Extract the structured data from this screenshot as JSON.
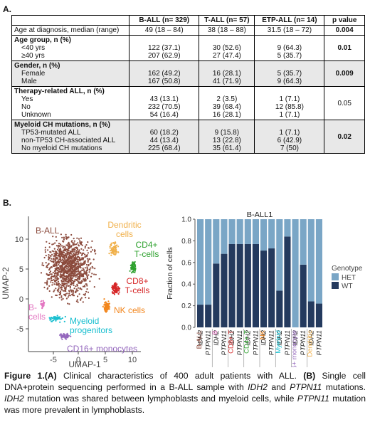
{
  "panel_labels": {
    "a": "A.",
    "b": "B."
  },
  "table": {
    "headers": [
      "",
      "B-ALL (n= 329)",
      "T-ALL (n= 57)",
      "ETP-ALL (n= 14)",
      "p value"
    ],
    "age_row": {
      "label": "Age at diagnosis, median (range)",
      "ball": "49 (18 – 84)",
      "tall": "38 (18 – 88)",
      "etp": "31.5 (18 – 72)",
      "p": "0.004"
    },
    "groups": [
      {
        "title": "Age group, n (%)",
        "p": "0.01",
        "shaded": false,
        "rows": [
          {
            "label": "<40 yrs",
            "ball": "122 (37.1)",
            "tall": "30 (52.6)",
            "etp": "9 (64.3)"
          },
          {
            "label": "≥40 yrs",
            "ball": "207 (62.9)",
            "tall": "27 (47.4)",
            "etp": "5 (35.7)"
          }
        ]
      },
      {
        "title": "Gender, n (%)",
        "p": "0.009",
        "shaded": true,
        "rows": [
          {
            "label": "Female",
            "ball": "162 (49.2)",
            "tall": "16 (28.1)",
            "etp": "5 (35.7)"
          },
          {
            "label": "Male",
            "ball": "167 (50.8)",
            "tall": "41 (71.9)",
            "etp": "9 (64.3)"
          }
        ]
      },
      {
        "title": "Therapy-related ALL, n (%)",
        "p": "0.05",
        "shaded": false,
        "rows": [
          {
            "label": "Yes",
            "ball": "43 (13.1)",
            "tall": "2 (3.5)",
            "etp": "1 (7.1)"
          },
          {
            "label": "No",
            "ball": "232 (70.5)",
            "tall": "39 (68.4)",
            "etp": "12 (85.8)"
          },
          {
            "label": "Unknown",
            "ball": "54 (16.4)",
            "tall": "16 (28.1)",
            "etp": "1 (7.1)"
          }
        ]
      },
      {
        "title": "Myeloid CH mutations, n (%)",
        "p": "0.02",
        "shaded": true,
        "rows": [
          {
            "label": "TP53-mutated ALL",
            "ball": "60 (18.2)",
            "tall": "9 (15.8)",
            "etp": "1 (7.1)"
          },
          {
            "label": "non-TP53 CH-associated ALL",
            "ball": "44 (13.4)",
            "tall": "13 (22.8)",
            "etp": "6 (42.9)"
          },
          {
            "label": "No myeloid CH mutations",
            "ball": "225 (68.4)",
            "tall": "35 (61.4)",
            "etp": "7 (50)"
          }
        ]
      }
    ]
  },
  "umap": {
    "xlabel": "UMAP-1",
    "ylabel": "UMAP-2",
    "xticks": [
      "-5",
      "0",
      "5",
      "10"
    ],
    "yticks": [
      "10",
      "5",
      "0",
      "-5"
    ],
    "clusters": [
      {
        "name": "B-ALL",
        "color": "#8b4a3c"
      },
      {
        "name": "Dendritic cells",
        "color": "#f0b04a"
      },
      {
        "name": "CD4+ T-cells",
        "color": "#2ca02c"
      },
      {
        "name": "CD8+ T-cells",
        "color": "#d62728"
      },
      {
        "name": "NK cells",
        "color": "#f2861d"
      },
      {
        "name": "B-cells",
        "color": "#e377c2"
      },
      {
        "name": "Myeloid progenitors",
        "color": "#17becf"
      },
      {
        "name": "CD16+ monocytes",
        "color": "#9467bd"
      }
    ]
  },
  "chart_data": {
    "type": "bar",
    "title": "B-ALL1",
    "ylabel": "Fraction of cells",
    "ylim": [
      0,
      1.0
    ],
    "yticks": [
      "0.0",
      "0.2",
      "0.4",
      "0.6",
      "0.8",
      "1.0"
    ],
    "legend_title": "Genotype",
    "legend_position": "right",
    "stacked": true,
    "categories": [
      "IDH2",
      "PTPN11",
      "IDH2",
      "PTPN11",
      "IDH2",
      "PTPN11",
      "IDH2",
      "PTPN11",
      "IDH2",
      "PTPN11",
      "IDH2",
      "PTPN11",
      "IDH2",
      "PTPN11",
      "IDH2",
      "PTPN11"
    ],
    "groups": [
      {
        "name": "B-ALL",
        "color": "#8b4a3c"
      },
      {
        "name": "B",
        "color": "#e377c2"
      },
      {
        "name": "CD8+ T",
        "color": "#d62728"
      },
      {
        "name": "CD4+ T",
        "color": "#2ca02c"
      },
      {
        "name": "NK",
        "color": "#f2861d"
      },
      {
        "name": "Myeloid",
        "color": "#17becf"
      },
      {
        "name": "CD16+ monocyte",
        "color": "#9467bd"
      },
      {
        "name": "Dendritic",
        "color": "#f0b04a"
      }
    ],
    "series": [
      {
        "name": "HET",
        "color": "#7aa6c6",
        "values": [
          0.79,
          0.79,
          0.41,
          0.32,
          0.23,
          0.23,
          0.23,
          0.23,
          0.29,
          0.27,
          0.66,
          0.16,
          1.0,
          0.42,
          0.76,
          0.78
        ]
      },
      {
        "name": "WT",
        "color": "#243a5e",
        "values": [
          0.21,
          0.21,
          0.59,
          0.68,
          0.77,
          0.77,
          0.77,
          0.77,
          0.71,
          0.73,
          0.34,
          0.84,
          0.0,
          0.58,
          0.24,
          0.22
        ]
      }
    ]
  },
  "caption": {
    "fig": "Figure 1.",
    "a_lbl": "(A)",
    "p1": " Clinical characteristics of 400 adult patients with ALL. ",
    "b_lbl": "(B)",
    "p2": " Single cell DNA+protein sequencing performed in a B-ALL sample with ",
    "g1": "IDH2",
    "p3": " and ",
    "g2": "PTPN11",
    "p4": " mutations. ",
    "g3": "IDH2",
    "p5": " mutation was shared between lymphoblasts and myeloid cells, while ",
    "g4": "PTPN11",
    "p6": " mutation was more prevalent in lymphoblasts."
  }
}
